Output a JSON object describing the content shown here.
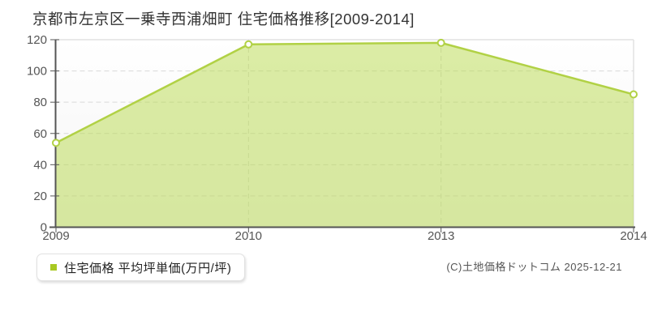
{
  "page": {
    "title": "京都市左京区一乗寺西浦畑町 住宅価格推移[2009-2014]",
    "copyright": "(C)土地価格ドットコム 2025-12-21"
  },
  "legend": {
    "label": "住宅価格 平均坪単価(万円/坪)",
    "bullet_color": "#a8c822"
  },
  "chart_data": {
    "type": "area",
    "title": "京都市左京区一乗寺西浦畑町 住宅価格推移[2009-2014]",
    "categories": [
      "2009",
      "2010",
      "2013",
      "2014"
    ],
    "series": [
      {
        "name": "住宅価格 平均坪単価(万円/坪)",
        "values": [
          54,
          117,
          118,
          85
        ]
      }
    ],
    "xlabel": "",
    "ylabel": "平均坪単価(万円/坪)",
    "ylim": [
      0,
      120
    ],
    "yticks": [
      0,
      20,
      40,
      60,
      80,
      100,
      120
    ],
    "grid": true,
    "legend_position": "bottom-left",
    "colors": {
      "line": "#b1d145",
      "fill": "#b8d94c",
      "fill_opacity": 0.5,
      "marker_fill": "#ffffff",
      "grid": "#d9d9d9",
      "plot_border": "#e2e2e2",
      "axis": "#555555",
      "tick_label": "#555555"
    }
  }
}
